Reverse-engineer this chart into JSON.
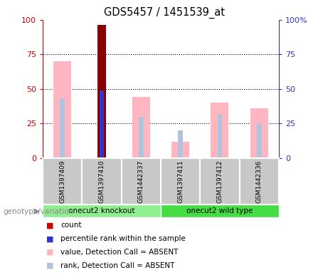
{
  "title": "GDS5457 / 1451539_at",
  "samples": [
    "GSM1397409",
    "GSM1397410",
    "GSM1442337",
    "GSM1397411",
    "GSM1397412",
    "GSM1442336"
  ],
  "value_absent": [
    70,
    0,
    44,
    12,
    40,
    36
  ],
  "rank_absent": [
    43,
    0,
    30,
    20,
    32,
    25
  ],
  "count_val": [
    0,
    96,
    0,
    0,
    0,
    0
  ],
  "percentile_rank": [
    0,
    49,
    0,
    0,
    0,
    0
  ],
  "ylim": [
    0,
    100
  ],
  "yticks": [
    0,
    25,
    50,
    75,
    100
  ],
  "bar_color_value_absent": "#FFB6C1",
  "bar_color_rank_absent": "#B0C4DE",
  "bar_color_count": "#8B0000",
  "bar_color_percentile": "#3333CC",
  "left_axis_color": "#CC0000",
  "right_axis_color": "#3333CC",
  "bg_sample_area": "#C8C8C8",
  "group_label_ko": "onecut2 knockout",
  "group_label_wt": "onecut2 wild type",
  "group_color_ko": "#90EE90",
  "group_color_wt": "#44DD44",
  "legend_items": [
    {
      "color": "#CC0000",
      "label": "count"
    },
    {
      "color": "#3333CC",
      "label": "percentile rank within the sample"
    },
    {
      "color": "#FFB6C1",
      "label": "value, Detection Call = ABSENT"
    },
    {
      "color": "#B0C4DE",
      "label": "rank, Detection Call = ABSENT"
    }
  ],
  "genotype_label": "genotype/variation",
  "right_ytick_labels": [
    "100%",
    "75",
    "50",
    "25",
    "0"
  ]
}
